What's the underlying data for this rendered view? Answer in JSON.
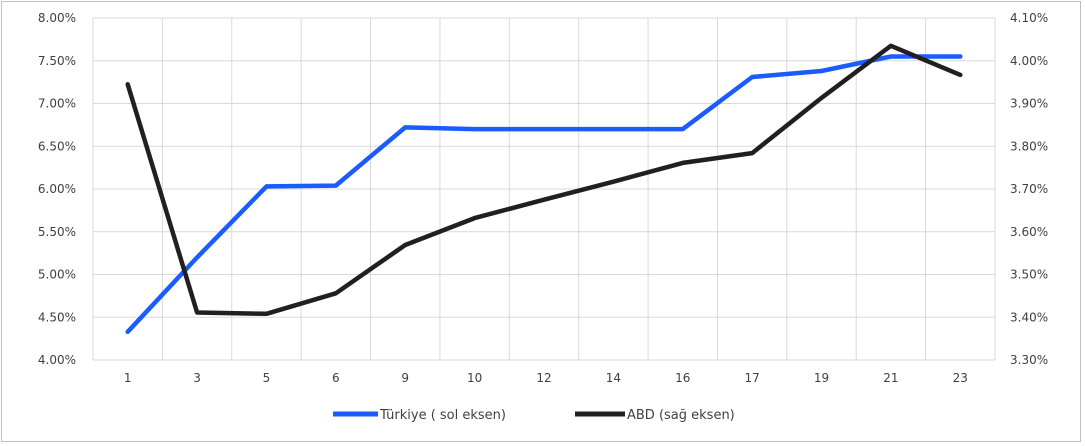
{
  "chart_data": {
    "type": "line",
    "title": "",
    "xlabel": "",
    "ylabel": "",
    "categories": [
      "1",
      "3",
      "5",
      "6",
      "9",
      "10",
      "12",
      "14",
      "16",
      "17",
      "19",
      "21",
      "23"
    ],
    "y_left_ticks": [
      "4.00%",
      "4.50%",
      "5.00%",
      "5.50%",
      "6.00%",
      "6.50%",
      "7.00%",
      "7.50%",
      "8.00%"
    ],
    "y_right_ticks": [
      "3.30%",
      "3.40%",
      "3.50%",
      "3.60%",
      "3.70%",
      "3.80%",
      "3.90%",
      "4.00%",
      "4.10%"
    ],
    "ylim_left": [
      4.0,
      8.0
    ],
    "ylim_right": [
      3.3,
      4.1
    ],
    "grid": true,
    "legend_position": "bottom-center",
    "series": [
      {
        "name": "Türkiye ( sol eksen)",
        "axis": "left",
        "color": "#1a5cff",
        "values": [
          4.33,
          5.2,
          6.03,
          6.04,
          6.72,
          6.7,
          6.7,
          6.7,
          6.7,
          7.31,
          7.38,
          7.55,
          7.55
        ]
      },
      {
        "name": "ABD (sağ eksen)",
        "axis": "right",
        "color": "#231f20",
        "values": [
          3.945,
          3.411,
          3.408,
          3.456,
          3.569,
          3.632,
          3.675,
          3.717,
          3.761,
          3.784,
          3.913,
          4.035,
          3.967
        ]
      }
    ]
  }
}
